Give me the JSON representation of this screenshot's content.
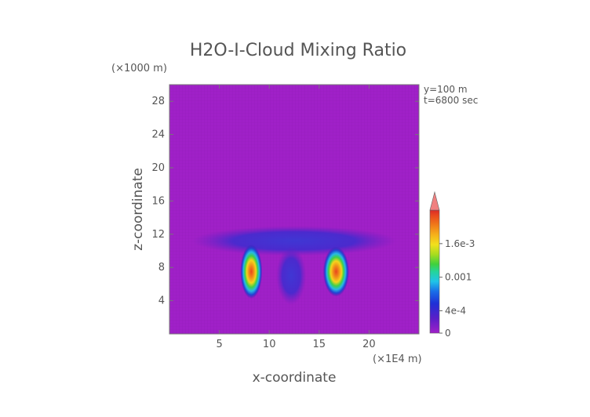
{
  "chart_data": {
    "type": "heatmap",
    "title": "H2O-I-Cloud Mixing Ratio",
    "xlabel": "x-coordinate",
    "ylabel": "z-coordinate",
    "x_unit": "(×1E4 m)",
    "y_unit": "(×1000 m)",
    "annotation_y": "y=100 m",
    "annotation_t": "t=6800 sec",
    "xlim": [
      0,
      25
    ],
    "ylim": [
      0,
      30
    ],
    "xticks": [
      "5",
      "10",
      "15",
      "20"
    ],
    "xtick_values": [
      5,
      10,
      15,
      20
    ],
    "yticks": [
      "4",
      "8",
      "12",
      "16",
      "20",
      "24",
      "28"
    ],
    "ytick_values": [
      4,
      8,
      12,
      16,
      20,
      24,
      28
    ],
    "colorbar": {
      "labels": [
        "0",
        "4e-4",
        "0.001",
        "1.6e-3"
      ],
      "label_values": [
        0,
        0.0004,
        0.001,
        0.0016
      ],
      "max": 0.0022,
      "extend": "max"
    },
    "background_color": "#a020c8",
    "features": [
      {
        "x": 8.2,
        "z": 7.5,
        "w": 2.2,
        "h": 6.5,
        "value": 0.0016
      },
      {
        "x": 16.7,
        "z": 7.5,
        "w": 2.6,
        "h": 6.0,
        "value": 0.0016
      },
      {
        "x": 12.5,
        "z": 11.2,
        "w": 20.5,
        "h": 3.6,
        "value": 0.0003
      },
      {
        "x": 12.2,
        "z": 7.0,
        "w": 3.0,
        "h": 7.0,
        "value": 0.0004
      }
    ]
  }
}
